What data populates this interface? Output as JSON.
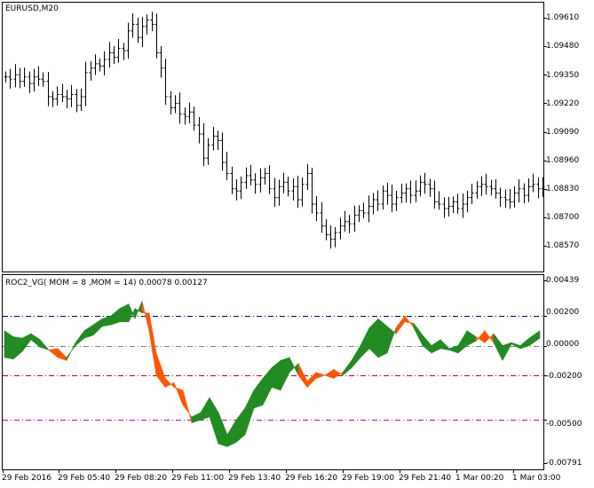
{
  "price_panel": {
    "symbol_label": "EURUSD,M20",
    "price_ticks": [
      "1.09610",
      "1.09480",
      "1.09350",
      "1.09220",
      "1.09090",
      "1.08960",
      "1.08830",
      "1.08700",
      "1.08570"
    ],
    "range": [
      1.0852,
      1.0966
    ]
  },
  "indicator_panel": {
    "label": "ROC2_VG( MOM = 8 ,MOM = 14) 0.00078 0.00127",
    "value_ticks": [
      "0.00439",
      "0.00200",
      "0.00000",
      "-0.00200",
      "-0.00500",
      "-0.00791"
    ],
    "range": [
      -0.00791,
      0.00439
    ],
    "levels": [
      {
        "value": 0.002,
        "color": "#00007f",
        "style": "dash-dot"
      },
      {
        "value": 0.0,
        "color": "#808080",
        "style": "dash-dot"
      },
      {
        "value": -0.002,
        "color": "#c00000",
        "style": "dash-dot"
      },
      {
        "value": -0.005,
        "color": "#c000c0",
        "style": "dash-dot"
      }
    ],
    "up_color": "#228b22",
    "down_color": "#ff5500"
  },
  "time_axis": [
    "29 Feb 2016",
    "29 Feb 05:40",
    "29 Feb 08:20",
    "29 Feb 11:00",
    "29 Feb 13:40",
    "29 Feb 16:20",
    "29 Feb 19:00",
    "29 Feb 21:40",
    "1 Mar 00:20",
    "1 Mar 03:00"
  ],
  "colors": {
    "background": "#ffffff",
    "frame": "#000000",
    "bars": "#000000"
  }
}
